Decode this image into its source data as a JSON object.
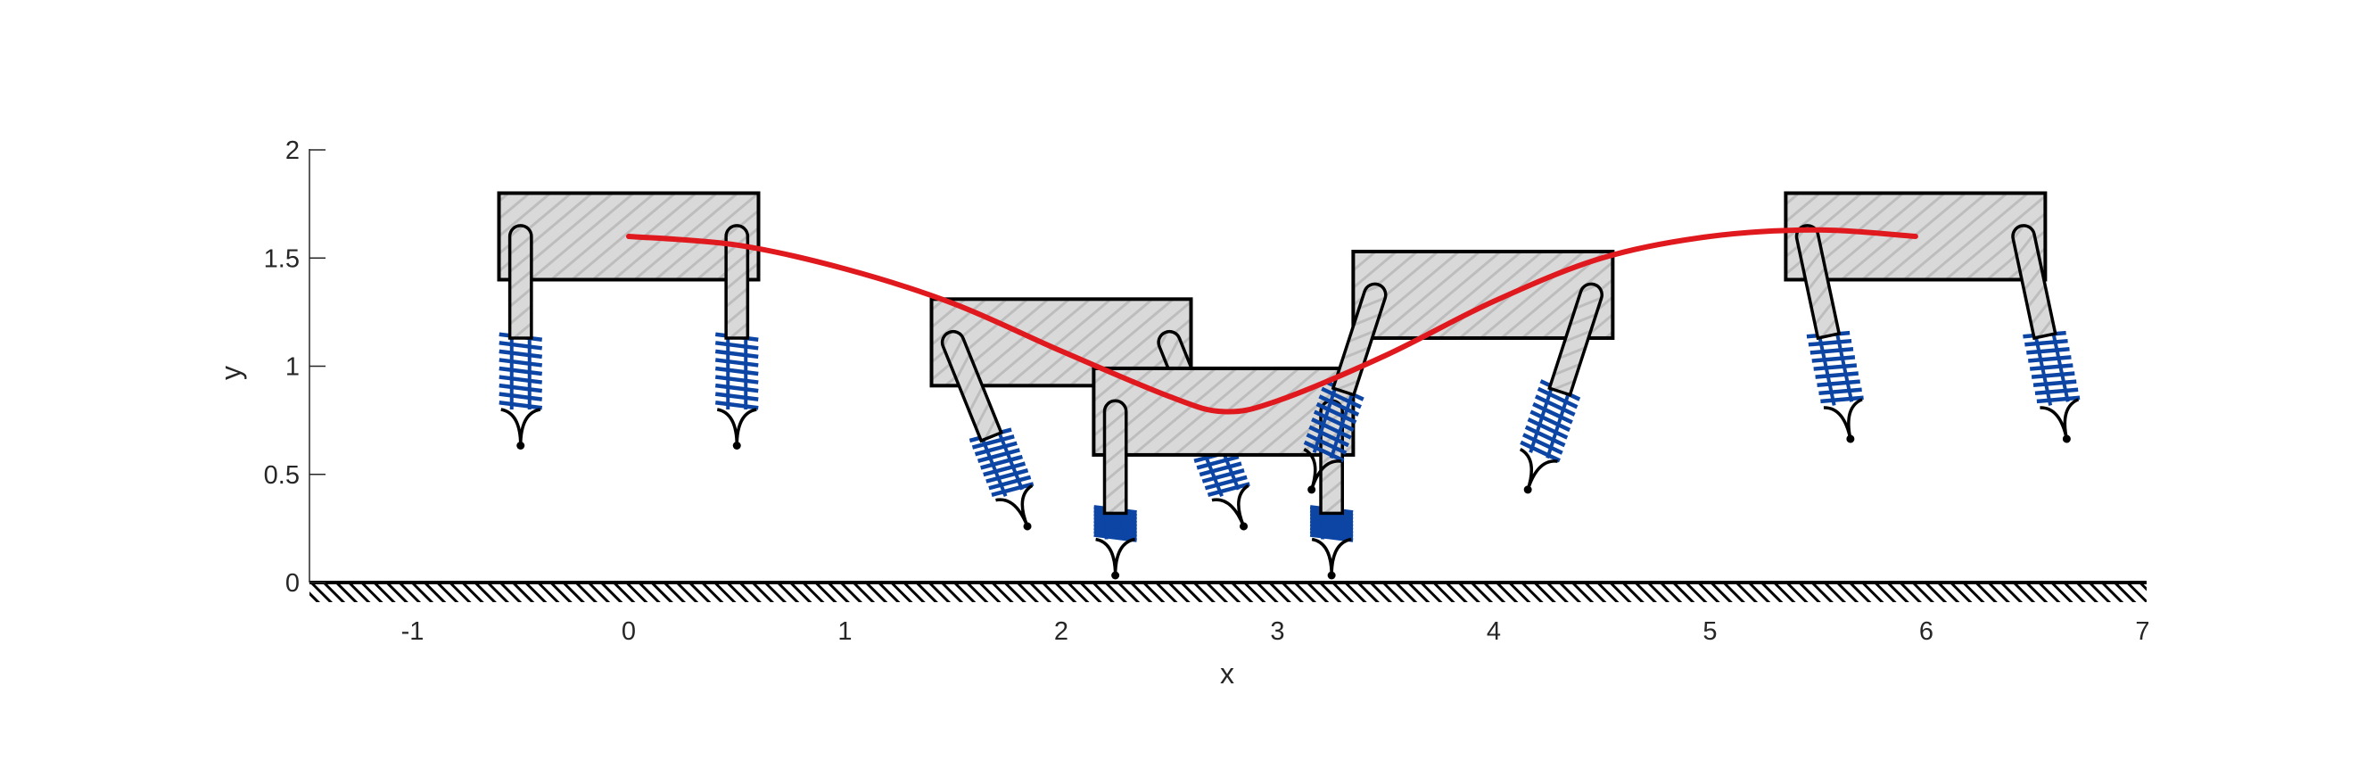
{
  "chart_data": {
    "type": "line",
    "title": "",
    "xlabel": "x",
    "ylabel": "y",
    "xlim": [
      -1.5,
      7
    ],
    "ylim": [
      0,
      2
    ],
    "xticks": [
      -1,
      0,
      1,
      2,
      3,
      4,
      5,
      6,
      7
    ],
    "yticks": [
      0,
      0.5,
      1,
      1.5,
      2
    ],
    "xtick_labels": [
      "-1",
      "0",
      "1",
      "2",
      "3",
      "4",
      "5",
      "6",
      "7"
    ],
    "ytick_labels": [
      "0",
      "0.5",
      "1",
      "1.5",
      "2"
    ],
    "grid": false,
    "colors": {
      "trajectory": "#e0191e",
      "spring": "#0c45a4",
      "body_fill": "#d9d9d9",
      "outline": "#000000"
    },
    "series": [
      {
        "name": "trajectory",
        "x": [
          0,
          0.5,
          1.0,
          1.5,
          2.0,
          2.5,
          2.75,
          3.0,
          3.5,
          4.0,
          4.5,
          5.0,
          5.5,
          5.95
        ],
        "y": [
          1.6,
          1.56,
          1.45,
          1.29,
          1.07,
          0.86,
          0.79,
          0.84,
          1.05,
          1.3,
          1.5,
          1.6,
          1.63,
          1.6
        ]
      }
    ],
    "hopper_snapshots": [
      {
        "x": 0,
        "body_y": 1.6,
        "hip_angle_deg": 0,
        "leg_length": 1.0
      },
      {
        "x": 2.0,
        "body_y": 1.11,
        "hip_angle_deg": -22,
        "leg_length": 0.95
      },
      {
        "x": 2.75,
        "body_y": 0.79,
        "hip_angle_deg": 0,
        "leg_length": 0.79
      },
      {
        "x": 3.95,
        "body_y": 1.33,
        "hip_angle_deg": 18,
        "leg_length": 0.98
      },
      {
        "x": 5.95,
        "body_y": 1.6,
        "hip_angle_deg": -12,
        "leg_length": 0.99
      }
    ]
  }
}
